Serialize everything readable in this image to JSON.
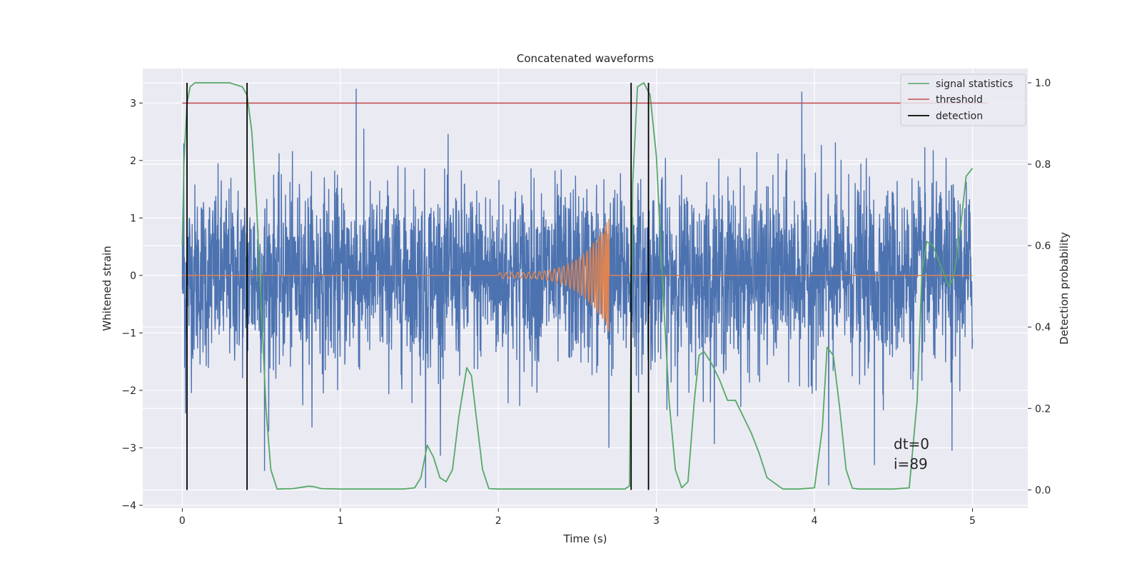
{
  "chart_data": {
    "type": "line",
    "title": "Concatenated waveforms",
    "xlabel": "Time (s)",
    "ylabel": "Whitened strain",
    "y2label": "Detection probability",
    "xlim": [
      -0.25,
      5.35
    ],
    "ylim": [
      -4.05,
      3.6
    ],
    "y2lim": [
      -0.045,
      1.035
    ],
    "xticks": [
      0,
      1,
      2,
      3,
      4,
      5
    ],
    "xtick_labels": [
      "0",
      "1",
      "2",
      "3",
      "4",
      "5"
    ],
    "yticks": [
      -4,
      -3,
      -2,
      -1,
      0,
      1,
      2,
      3
    ],
    "ytick_labels": [
      "−4",
      "−3",
      "−2",
      "−1",
      "0",
      "1",
      "2",
      "3"
    ],
    "y2ticks": [
      0.0,
      0.2,
      0.4,
      0.6,
      0.8,
      1.0
    ],
    "y2tick_labels": [
      "0.0",
      "0.2",
      "0.4",
      "0.6",
      "0.8",
      "1.0"
    ],
    "grid": true,
    "legend_position": "top-right",
    "annotation": [
      "dt=0",
      "i=89"
    ],
    "colors": {
      "noise": "#4c72b0",
      "waveform": "#dd8452",
      "signal_statistics": "#55a868",
      "threshold": "#c44e52",
      "detection": "#000000",
      "axes_bg": "#eaeaf2",
      "grid": "#ffffff"
    },
    "series": [
      {
        "name": "",
        "axis": "left",
        "kind": "noise",
        "x_range": [
          0,
          5
        ],
        "spike_peaks": [
          [
            0.01,
            2.3
          ],
          [
            0.02,
            -2.4
          ],
          [
            1.1,
            3.25
          ],
          [
            1.54,
            -3.7
          ],
          [
            3.92,
            3.2
          ],
          [
            4.09,
            -3.65
          ],
          [
            4.38,
            -3.3
          ],
          [
            4.87,
            -3.05
          ],
          [
            0.52,
            -3.4
          ],
          [
            2.7,
            -3.0
          ]
        ]
      },
      {
        "name": "",
        "axis": "left",
        "kind": "chirp",
        "x_range": [
          0,
          5
        ],
        "chirp_start": 2.0,
        "chirp_merger": 2.7,
        "chirp_peak": 1.0
      },
      {
        "name": "signal statistics",
        "axis": "right",
        "x": [
          0,
          0.01,
          0.03,
          0.05,
          0.08,
          0.12,
          0.2,
          0.3,
          0.38,
          0.41,
          0.44,
          0.47,
          0.5,
          0.53,
          0.56,
          0.6,
          0.7,
          0.8,
          0.83,
          0.88,
          1.0,
          1.2,
          1.4,
          1.47,
          1.51,
          1.55,
          1.59,
          1.63,
          1.67,
          1.71,
          1.75,
          1.8,
          1.83,
          1.86,
          1.9,
          1.94,
          2.0,
          2.4,
          2.8,
          2.83,
          2.85,
          2.88,
          2.92,
          2.96,
          3.0,
          3.04,
          3.08,
          3.12,
          3.16,
          3.2,
          3.24,
          3.27,
          3.3,
          3.35,
          3.4,
          3.45,
          3.5,
          3.55,
          3.6,
          3.65,
          3.7,
          3.8,
          3.9,
          4.0,
          4.05,
          4.08,
          4.12,
          4.16,
          4.2,
          4.24,
          4.28,
          4.35,
          4.5,
          4.6,
          4.65,
          4.68,
          4.71,
          4.75,
          4.8,
          4.85,
          4.88,
          4.92,
          4.96,
          5.0
        ],
        "y": [
          0.6,
          0.8,
          0.95,
          0.99,
          1.0,
          1.0,
          1.0,
          1.0,
          0.99,
          0.97,
          0.88,
          0.7,
          0.45,
          0.2,
          0.05,
          0.002,
          0.003,
          0.009,
          0.008,
          0.003,
          0.002,
          0.002,
          0.002,
          0.005,
          0.03,
          0.11,
          0.08,
          0.03,
          0.02,
          0.05,
          0.18,
          0.3,
          0.28,
          0.18,
          0.05,
          0.003,
          0.002,
          0.002,
          0.002,
          0.01,
          0.75,
          0.99,
          1.0,
          0.97,
          0.82,
          0.5,
          0.22,
          0.05,
          0.005,
          0.02,
          0.22,
          0.33,
          0.34,
          0.31,
          0.27,
          0.22,
          0.22,
          0.18,
          0.14,
          0.09,
          0.03,
          0.002,
          0.002,
          0.005,
          0.15,
          0.35,
          0.33,
          0.2,
          0.05,
          0.004,
          0.002,
          0.002,
          0.002,
          0.005,
          0.22,
          0.53,
          0.61,
          0.6,
          0.55,
          0.5,
          0.52,
          0.63,
          0.77,
          0.79
        ]
      },
      {
        "name": "threshold",
        "axis": "right",
        "x": [
          0,
          5.1
        ],
        "y": [
          0.95,
          0.95
        ]
      },
      {
        "name": "detection",
        "axis": "right",
        "vlines": [
          0.03,
          0.41,
          2.84,
          2.95
        ],
        "y_range": [
          0.0,
          1.0
        ]
      }
    ]
  }
}
